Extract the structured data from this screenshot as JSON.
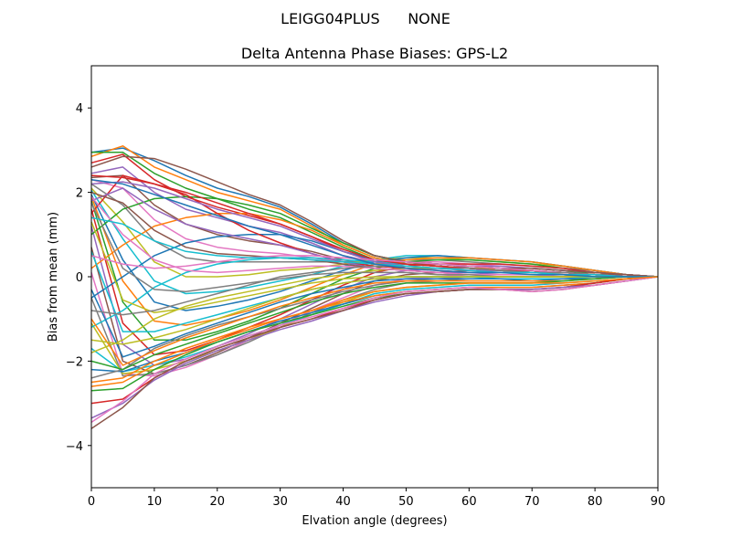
{
  "chart_data": {
    "type": "line",
    "suptitle": "LEIGG04PLUS      NONE",
    "title": "Delta Antenna Phase Biases: GPS-L2",
    "xlabel": "Elvation angle (degrees)",
    "ylabel": "Bias from mean (mm)",
    "xlim": [
      0,
      90
    ],
    "ylim": [
      -5,
      5
    ],
    "xticks": [
      "0",
      "10",
      "20",
      "30",
      "40",
      "50",
      "60",
      "70",
      "80",
      "90"
    ],
    "yticks": [
      "−4",
      "−2",
      "0",
      "2",
      "4"
    ],
    "grid": false,
    "legend": "none",
    "x": [
      0,
      5,
      10,
      15,
      20,
      25,
      30,
      35,
      40,
      45,
      50,
      55,
      60,
      65,
      70,
      75,
      80,
      85,
      90
    ],
    "palette": [
      "#1f77b4",
      "#ff7f0e",
      "#2ca02c",
      "#d62728",
      "#9467bd",
      "#8c564b",
      "#e377c2",
      "#7f7f7f",
      "#bcbd22",
      "#17becf"
    ],
    "series": [
      {
        "values": [
          2.95,
          3.05,
          2.75,
          2.4,
          2.1,
          1.9,
          1.65,
          1.25,
          0.8,
          0.5,
          0.35,
          0.3,
          0.25,
          0.2,
          0.2,
          0.15,
          0.1,
          0.05,
          0
        ]
      },
      {
        "values": [
          2.85,
          3.1,
          2.6,
          2.3,
          2.0,
          1.8,
          1.6,
          1.2,
          0.75,
          0.45,
          0.3,
          0.25,
          0.2,
          0.2,
          0.15,
          0.1,
          0.1,
          0.05,
          0
        ]
      },
      {
        "values": [
          2.95,
          2.95,
          2.45,
          2.1,
          1.85,
          1.6,
          1.4,
          1.05,
          0.7,
          0.4,
          0.3,
          0.25,
          0.2,
          0.15,
          0.15,
          0.1,
          0.1,
          0.05,
          0
        ]
      },
      {
        "values": [
          2.7,
          2.9,
          2.3,
          1.9,
          1.65,
          1.45,
          1.25,
          0.95,
          0.6,
          0.35,
          0.3,
          0.25,
          0.2,
          0.15,
          0.15,
          0.1,
          0.05,
          0.05,
          0
        ]
      },
      {
        "values": [
          2.45,
          2.6,
          2.0,
          1.6,
          1.4,
          1.2,
          1.05,
          0.8,
          0.5,
          0.35,
          0.3,
          0.25,
          0.2,
          0.15,
          0.1,
          0.1,
          0.05,
          0.05,
          0
        ]
      },
      {
        "values": [
          2.35,
          2.4,
          1.7,
          1.25,
          1.0,
          0.85,
          0.75,
          0.6,
          0.4,
          0.3,
          0.3,
          0.3,
          0.25,
          0.2,
          0.15,
          0.1,
          0.05,
          0.05,
          0
        ]
      },
      {
        "values": [
          2.3,
          2.1,
          1.35,
          0.9,
          0.7,
          0.6,
          0.55,
          0.45,
          0.35,
          0.35,
          0.35,
          0.35,
          0.3,
          0.25,
          0.2,
          0.15,
          0.1,
          0.05,
          0
        ]
      },
      {
        "values": [
          2.2,
          1.7,
          0.85,
          0.45,
          0.35,
          0.35,
          0.35,
          0.35,
          0.35,
          0.4,
          0.4,
          0.4,
          0.35,
          0.3,
          0.25,
          0.2,
          0.15,
          0.05,
          0
        ]
      },
      {
        "values": [
          2.1,
          1.3,
          0.35,
          0.0,
          0.0,
          0.05,
          0.15,
          0.2,
          0.3,
          0.4,
          0.45,
          0.45,
          0.4,
          0.35,
          0.3,
          0.25,
          0.15,
          0.05,
          0
        ]
      },
      {
        "values": [
          2.05,
          0.9,
          -0.1,
          -0.4,
          -0.35,
          -0.25,
          -0.1,
          0.05,
          0.25,
          0.4,
          0.5,
          0.5,
          0.45,
          0.4,
          0.35,
          0.25,
          0.15,
          0.05,
          0
        ]
      },
      {
        "values": [
          1.95,
          0.4,
          -0.6,
          -0.8,
          -0.7,
          -0.55,
          -0.35,
          -0.1,
          0.15,
          0.35,
          0.45,
          0.5,
          0.45,
          0.4,
          0.35,
          0.25,
          0.15,
          0.05,
          0
        ]
      },
      {
        "values": [
          1.9,
          -0.1,
          -1.05,
          -1.15,
          -1.0,
          -0.8,
          -0.55,
          -0.25,
          0.05,
          0.3,
          0.4,
          0.45,
          0.45,
          0.4,
          0.35,
          0.25,
          0.15,
          0.05,
          0
        ]
      },
      {
        "values": [
          1.8,
          -0.6,
          -1.5,
          -1.5,
          -1.3,
          -1.05,
          -0.75,
          -0.4,
          -0.05,
          0.2,
          0.35,
          0.4,
          0.4,
          0.35,
          0.3,
          0.2,
          0.1,
          0.05,
          0
        ]
      },
      {
        "values": [
          1.6,
          -1.1,
          -1.85,
          -1.75,
          -1.5,
          -1.2,
          -0.9,
          -0.55,
          -0.2,
          0.1,
          0.25,
          0.3,
          0.3,
          0.3,
          0.25,
          0.2,
          0.1,
          0.05,
          0
        ]
      },
      {
        "values": [
          1.2,
          -1.6,
          -2.1,
          -1.95,
          -1.65,
          -1.35,
          -1.0,
          -0.65,
          -0.3,
          0.0,
          0.15,
          0.2,
          0.25,
          0.25,
          0.2,
          0.15,
          0.1,
          0.05,
          0
        ]
      },
      {
        "values": [
          0.7,
          -2.0,
          -2.3,
          -2.1,
          -1.8,
          -1.45,
          -1.1,
          -0.75,
          -0.4,
          -0.1,
          0.05,
          0.1,
          0.15,
          0.15,
          0.15,
          0.1,
          0.05,
          0.0,
          0
        ]
      },
      {
        "values": [
          0.1,
          -2.3,
          -2.35,
          -2.15,
          -1.85,
          -1.5,
          -1.15,
          -0.8,
          -0.5,
          -0.2,
          -0.05,
          0.0,
          0.05,
          0.05,
          0.05,
          0.05,
          0.0,
          0.0,
          0
        ]
      },
      {
        "values": [
          -0.5,
          -2.35,
          -2.3,
          -2.1,
          -1.85,
          -1.55,
          -1.2,
          -0.85,
          -0.55,
          -0.3,
          -0.15,
          -0.1,
          -0.05,
          -0.05,
          -0.05,
          -0.05,
          -0.05,
          0.0,
          0
        ]
      },
      {
        "values": [
          -1.1,
          -2.3,
          -2.2,
          -2.0,
          -1.75,
          -1.5,
          -1.2,
          -0.9,
          -0.6,
          -0.35,
          -0.25,
          -0.2,
          -0.15,
          -0.15,
          -0.15,
          -0.1,
          -0.05,
          0.0,
          0
        ]
      },
      {
        "values": [
          -1.7,
          -2.25,
          -2.1,
          -1.9,
          -1.65,
          -1.4,
          -1.15,
          -0.9,
          -0.65,
          -0.4,
          -0.3,
          -0.25,
          -0.2,
          -0.2,
          -0.2,
          -0.15,
          -0.1,
          -0.05,
          0
        ]
      },
      {
        "values": [
          -2.2,
          -2.25,
          -2.0,
          -1.8,
          -1.55,
          -1.3,
          -1.05,
          -0.85,
          -0.65,
          -0.45,
          -0.35,
          -0.3,
          -0.25,
          -0.25,
          -0.25,
          -0.2,
          -0.15,
          -0.05,
          0
        ]
      },
      {
        "values": [
          -2.5,
          -2.4,
          -2.0,
          -1.7,
          -1.45,
          -1.2,
          -1.0,
          -0.8,
          -0.6,
          -0.45,
          -0.35,
          -0.3,
          -0.25,
          -0.25,
          -0.25,
          -0.2,
          -0.15,
          -0.05,
          0
        ]
      },
      {
        "values": [
          -2.7,
          -2.65,
          -2.2,
          -1.85,
          -1.55,
          -1.3,
          -1.1,
          -0.9,
          -0.7,
          -0.5,
          -0.4,
          -0.35,
          -0.3,
          -0.3,
          -0.3,
          -0.25,
          -0.15,
          -0.05,
          0
        ]
      },
      {
        "values": [
          -3.0,
          -2.9,
          -2.4,
          -2.0,
          -1.7,
          -1.45,
          -1.2,
          -1.0,
          -0.75,
          -0.55,
          -0.4,
          -0.35,
          -0.3,
          -0.3,
          -0.3,
          -0.25,
          -0.15,
          -0.05,
          0
        ]
      },
      {
        "values": [
          -3.35,
          -3.0,
          -2.45,
          -2.05,
          -1.75,
          -1.5,
          -1.25,
          -1.05,
          -0.8,
          -0.6,
          -0.45,
          -0.35,
          -0.3,
          -0.3,
          -0.3,
          -0.25,
          -0.2,
          -0.1,
          0
        ]
      },
      {
        "values": [
          -3.6,
          -3.1,
          -2.4,
          -2.0,
          -1.7,
          -1.45,
          -1.2,
          -1.0,
          -0.8,
          -0.55,
          -0.4,
          -0.35,
          -0.3,
          -0.3,
          -0.35,
          -0.3,
          -0.2,
          -0.1,
          0
        ]
      },
      {
        "values": [
          -3.45,
          -2.95,
          -2.3,
          -1.95,
          -1.65,
          -1.4,
          -1.15,
          -0.95,
          -0.75,
          -0.5,
          -0.35,
          -0.3,
          -0.25,
          -0.3,
          -0.35,
          -0.3,
          -0.2,
          -0.1,
          0
        ]
      },
      {
        "values": [
          -2.4,
          -2.2,
          -1.7,
          -1.4,
          -1.15,
          -0.95,
          -0.75,
          -0.55,
          -0.35,
          -0.2,
          -0.1,
          -0.05,
          0.0,
          0.0,
          0.0,
          0.0,
          0.0,
          0.0,
          0
        ]
      },
      {
        "values": [
          -1.8,
          -1.5,
          -1.0,
          -0.7,
          -0.5,
          -0.35,
          -0.2,
          -0.05,
          0.05,
          0.15,
          0.2,
          0.2,
          0.2,
          0.15,
          0.15,
          0.1,
          0.05,
          0.0,
          0
        ]
      },
      {
        "values": [
          -1.2,
          -0.8,
          -0.25,
          0.1,
          0.3,
          0.4,
          0.45,
          0.45,
          0.4,
          0.35,
          0.3,
          0.25,
          0.2,
          0.15,
          0.1,
          0.1,
          0.05,
          0.0,
          0
        ]
      },
      {
        "values": [
          -0.5,
          0.0,
          0.5,
          0.8,
          0.95,
          1.0,
          1.0,
          0.85,
          0.6,
          0.4,
          0.3,
          0.25,
          0.2,
          0.15,
          0.1,
          0.1,
          0.05,
          0.0,
          0
        ]
      },
      {
        "values": [
          0.2,
          0.75,
          1.2,
          1.4,
          1.5,
          1.5,
          1.35,
          1.1,
          0.75,
          0.45,
          0.3,
          0.25,
          0.2,
          0.15,
          0.1,
          0.1,
          0.05,
          0.0,
          0
        ]
      },
      {
        "values": [
          1.0,
          1.6,
          1.85,
          1.9,
          1.85,
          1.7,
          1.5,
          1.15,
          0.8,
          0.5,
          0.35,
          0.3,
          0.25,
          0.2,
          0.15,
          0.1,
          0.05,
          0.0,
          0
        ]
      },
      {
        "values": [
          1.5,
          2.4,
          2.2,
          1.95,
          1.5,
          1.1,
          0.8,
          0.55,
          0.35,
          0.25,
          0.2,
          0.15,
          0.1,
          0.1,
          0.1,
          0.05,
          0.05,
          0.0,
          0
        ]
      },
      {
        "values": [
          1.8,
          2.1,
          1.6,
          1.25,
          1.05,
          0.9,
          0.75,
          0.55,
          0.35,
          0.2,
          0.15,
          0.1,
          0.1,
          0.05,
          0.05,
          0.05,
          0.0,
          0.0,
          0
        ]
      },
      {
        "values": [
          2.0,
          1.75,
          1.1,
          0.7,
          0.55,
          0.5,
          0.45,
          0.4,
          0.3,
          0.2,
          0.15,
          0.1,
          0.05,
          0.05,
          0.05,
          0.05,
          0.0,
          0.0,
          0
        ]
      },
      {
        "values": [
          1.9,
          1.0,
          0.4,
          0.15,
          0.1,
          0.15,
          0.2,
          0.25,
          0.25,
          0.2,
          0.15,
          0.1,
          0.05,
          0.05,
          0.05,
          0.0,
          0.0,
          0.0,
          0
        ]
      },
      {
        "values": [
          1.75,
          0.2,
          -0.3,
          -0.35,
          -0.25,
          -0.15,
          -0.05,
          0.05,
          0.1,
          0.1,
          0.1,
          0.05,
          0.05,
          0.0,
          0.0,
          0.0,
          0.0,
          0.0,
          0
        ]
      },
      {
        "values": [
          1.3,
          -0.55,
          -0.85,
          -0.75,
          -0.6,
          -0.45,
          -0.3,
          -0.15,
          -0.05,
          0.0,
          0.0,
          0.0,
          0.0,
          0.0,
          0.0,
          0.0,
          0.0,
          0.0,
          0
        ]
      },
      {
        "values": [
          0.6,
          -1.3,
          -1.3,
          -1.1,
          -0.9,
          -0.7,
          -0.5,
          -0.3,
          -0.15,
          -0.05,
          0.0,
          0.0,
          0.0,
          -0.05,
          -0.05,
          -0.05,
          0.0,
          0.0,
          0
        ]
      },
      {
        "values": [
          -0.3,
          -1.9,
          -1.65,
          -1.35,
          -1.1,
          -0.85,
          -0.6,
          -0.4,
          -0.25,
          -0.1,
          -0.05,
          -0.05,
          -0.05,
          -0.05,
          -0.1,
          -0.05,
          -0.05,
          0.0,
          0
        ]
      },
      {
        "values": [
          -1.0,
          -2.1,
          -1.75,
          -1.45,
          -1.2,
          -0.95,
          -0.7,
          -0.5,
          -0.3,
          -0.15,
          -0.1,
          -0.1,
          -0.1,
          -0.1,
          -0.1,
          -0.1,
          -0.05,
          0.0,
          0
        ]
      },
      {
        "values": [
          -2.0,
          -2.2,
          -1.85,
          -1.6,
          -1.35,
          -1.1,
          -0.85,
          -0.6,
          -0.4,
          -0.25,
          -0.15,
          -0.15,
          -0.15,
          -0.15,
          -0.15,
          -0.1,
          -0.05,
          0.0,
          0
        ]
      },
      {
        "values": [
          2.4,
          2.35,
          2.2,
          2.0,
          1.75,
          1.5,
          1.25,
          0.95,
          0.65,
          0.4,
          0.3,
          0.25,
          0.2,
          0.15,
          0.15,
          0.1,
          0.05,
          0.0,
          0
        ]
      },
      {
        "values": [
          2.2,
          2.25,
          2.1,
          1.85,
          1.6,
          1.4,
          1.2,
          0.9,
          0.6,
          0.35,
          0.25,
          0.2,
          0.15,
          0.15,
          0.1,
          0.1,
          0.05,
          0.0,
          0
        ]
      },
      {
        "values": [
          2.6,
          2.85,
          2.8,
          2.55,
          2.25,
          1.95,
          1.7,
          1.3,
          0.85,
          0.5,
          0.35,
          0.3,
          0.25,
          0.2,
          0.2,
          0.15,
          0.1,
          0.05,
          0
        ]
      },
      {
        "values": [
          0.5,
          0.3,
          0.2,
          0.25,
          0.35,
          0.45,
          0.5,
          0.5,
          0.45,
          0.4,
          0.35,
          0.3,
          0.25,
          0.2,
          0.15,
          0.1,
          0.05,
          0.0,
          0
        ]
      },
      {
        "values": [
          -0.8,
          -0.9,
          -0.8,
          -0.6,
          -0.4,
          -0.2,
          0.0,
          0.1,
          0.2,
          0.25,
          0.25,
          0.2,
          0.2,
          0.15,
          0.1,
          0.1,
          0.05,
          0.0,
          0
        ]
      },
      {
        "values": [
          -1.5,
          -1.6,
          -1.45,
          -1.25,
          -1.0,
          -0.75,
          -0.5,
          -0.3,
          -0.15,
          -0.05,
          0.0,
          0.0,
          0.0,
          0.0,
          0.0,
          0.0,
          0.0,
          0.0,
          0
        ]
      },
      {
        "values": [
          1.4,
          1.25,
          0.85,
          0.6,
          0.5,
          0.45,
          0.45,
          0.4,
          0.35,
          0.3,
          0.25,
          0.2,
          0.15,
          0.1,
          0.1,
          0.05,
          0.05,
          0.0,
          0
        ]
      },
      {
        "values": [
          2.3,
          2.2,
          1.95,
          1.7,
          1.45,
          1.2,
          1.0,
          0.75,
          0.5,
          0.3,
          0.2,
          0.15,
          0.1,
          0.1,
          0.05,
          0.05,
          0.0,
          0.0,
          0
        ]
      },
      {
        "values": [
          -2.6,
          -2.5,
          -2.1,
          -1.8,
          -1.5,
          -1.25,
          -1.0,
          -0.8,
          -0.55,
          -0.35,
          -0.25,
          -0.2,
          -0.15,
          -0.15,
          -0.15,
          -0.15,
          -0.1,
          -0.05,
          0
        ]
      }
    ]
  }
}
